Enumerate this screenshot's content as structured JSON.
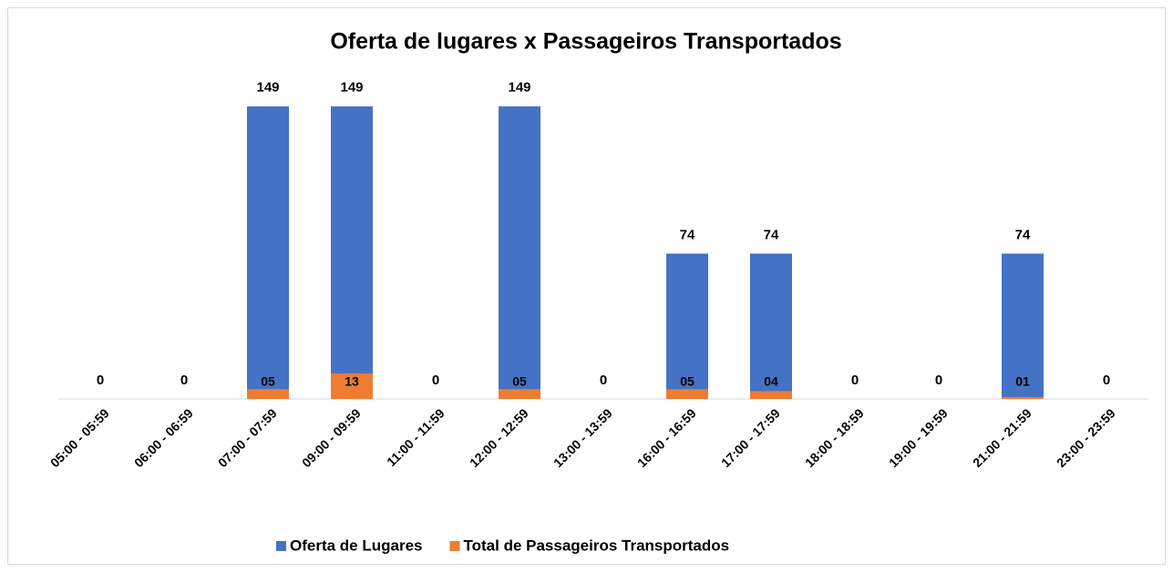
{
  "chart_data": {
    "type": "bar",
    "title": "Oferta de lugares x Passageiros Transportados",
    "categories": [
      "05:00 - 05:59",
      "06:00 - 06:59",
      "07:00 - 07:59",
      "09:00 - 09:59",
      "11:00 - 11:59",
      "12:00 - 12:59",
      "13:00 - 13:59",
      "16:00 - 16:59",
      "17:00 - 17:59",
      "18:00 - 18:59",
      "19:00 - 19:59",
      "21:00 - 21:59",
      "23:00 - 23:59"
    ],
    "series": [
      {
        "name": "Oferta de Lugares",
        "color": "#4472c4",
        "values": [
          0,
          0,
          149,
          149,
          0,
          149,
          0,
          74,
          74,
          0,
          0,
          74,
          0
        ]
      },
      {
        "name": "Total de Passageiros Transportados",
        "color": "#ed7d31",
        "values": [
          0,
          0,
          5,
          13,
          0,
          5,
          0,
          5,
          4,
          0,
          0,
          1,
          0
        ],
        "value_labels": [
          null,
          null,
          "05",
          "13",
          null,
          "05",
          null,
          "05",
          "04",
          null,
          null,
          "01",
          null
        ]
      }
    ],
    "ylim": [
      0,
      160
    ],
    "legend": "bottom"
  }
}
